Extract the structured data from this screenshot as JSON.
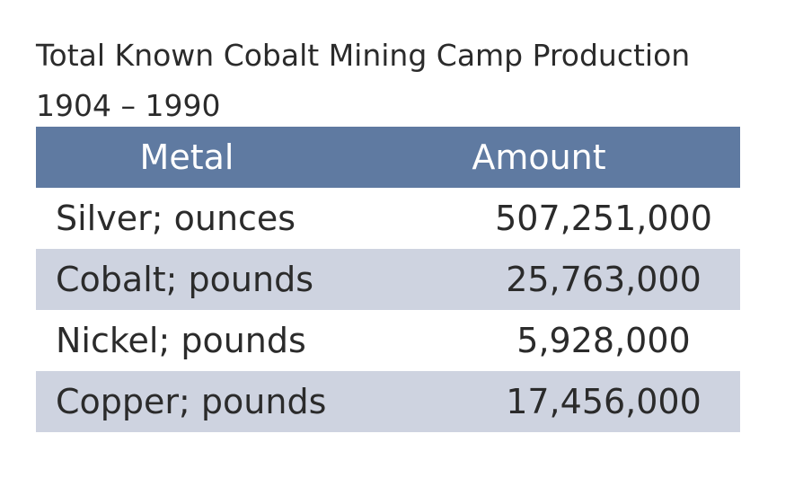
{
  "title": {
    "line1": "Total Known Cobalt Mining Camp Production",
    "line2": "1904 – 1990"
  },
  "table": {
    "headers": {
      "metal": "Metal",
      "amount": "Amount"
    },
    "rows": [
      {
        "metal": "Silver; ounces",
        "amount": "507,251,000"
      },
      {
        "metal": "Cobalt; pounds",
        "amount": "25,763,000"
      },
      {
        "metal": "Nickel; pounds",
        "amount": "5,928,000"
      },
      {
        "metal": "Copper; pounds",
        "amount": "17,456,000"
      }
    ]
  },
  "colors": {
    "header_background": "#5f7aa1",
    "shaded_row": "#ced3e0",
    "text": "#2b2b2b"
  }
}
